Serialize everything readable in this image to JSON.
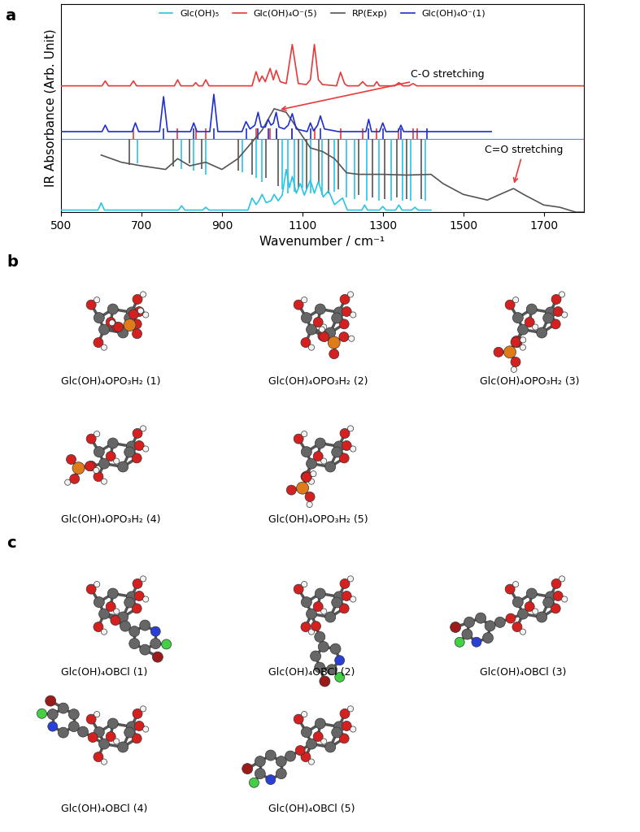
{
  "chart_data": {
    "type": "line",
    "panel_label": "a",
    "x_label": "Wavenumber / cm⁻¹",
    "y_label": "IR Absorbance (Arb. Unit)",
    "xlim": [
      500,
      1800
    ],
    "xticks": [
      500,
      700,
      900,
      1100,
      1300,
      1500,
      1700
    ],
    "ylim": [
      0,
      11
    ],
    "tick_labels": "x",
    "legend": "upper center",
    "stick_base": 3.89,
    "series": [
      {
        "name": "Glc(OH)₅",
        "color": "#29c5e6",
        "x": [
          500,
          592,
          600,
          608,
          792,
          800,
          808,
          852,
          860,
          868,
          965,
          975,
          985,
          992,
          1000,
          1010,
          1022,
          1030,
          1040,
          1050,
          1060,
          1068,
          1075,
          1085,
          1095,
          1105,
          1120,
          1130,
          1140,
          1152,
          1165,
          1180,
          1200,
          1212,
          1248,
          1255,
          1262,
          1292,
          1300,
          1308,
          1332,
          1340,
          1348,
          1372,
          1380,
          1388,
          1420
        ],
        "values": [
          0.11,
          0.11,
          0.49,
          0.11,
          0.11,
          0.34,
          0.11,
          0.11,
          0.26,
          0.11,
          0.11,
          0.75,
          0.4,
          0.6,
          0.94,
          0.5,
          0.6,
          0.94,
          0.6,
          0.9,
          2.26,
          1.3,
          1.89,
          1.0,
          1.51,
          0.9,
          1.7,
          1.0,
          1.62,
          0.8,
          1.13,
          0.4,
          0.75,
          0.11,
          0.11,
          0.38,
          0.11,
          0.11,
          0.3,
          0.11,
          0.11,
          0.38,
          0.11,
          0.11,
          0.26,
          0.11,
          0.11
        ],
        "sticks": {
          "x": [
            690,
            800,
            830,
            860,
            950,
            985,
            1000,
            1050,
            1065,
            1080,
            1100,
            1120,
            1150,
            1180,
            1210,
            1230,
            1260,
            1290,
            1320,
            1350,
            1370,
            1405
          ],
          "tips": [
            2.6,
            2.3,
            2.2,
            2.0,
            2.1,
            1.8,
            1.6,
            1.2,
            1.0,
            1.1,
            1.3,
            1.0,
            0.9,
            1.1,
            0.8,
            0.7,
            0.6,
            0.6,
            0.6,
            0.6,
            0.6,
            0.6
          ]
        }
      },
      {
        "name": "Glc(OH)₄O⁻(5)",
        "color": "#e8393b",
        "x": [
          500,
          602,
          610,
          618,
          672,
          680,
          688,
          782,
          790,
          798,
          828,
          835,
          842,
          852,
          860,
          868,
          975,
          985,
          993,
          1000,
          1008,
          1020,
          1028,
          1035,
          1045,
          1060,
          1075,
          1090,
          1110,
          1120,
          1130,
          1140,
          1150,
          1185,
          1195,
          1205,
          1212,
          1240,
          1250,
          1260,
          1278,
          1285,
          1292,
          1330,
          1340,
          1350,
          1365,
          1375,
          1385,
          1800
        ],
        "values": [
          6.68,
          6.68,
          6.94,
          6.68,
          6.68,
          6.94,
          6.68,
          6.68,
          7.0,
          6.68,
          6.68,
          6.85,
          6.68,
          6.68,
          7.0,
          6.68,
          6.68,
          7.43,
          6.9,
          7.2,
          6.9,
          7.6,
          7.0,
          7.5,
          6.9,
          6.8,
          8.87,
          6.8,
          6.75,
          7.0,
          8.87,
          7.0,
          6.75,
          6.68,
          7.4,
          6.8,
          6.68,
          6.68,
          6.9,
          6.68,
          6.68,
          6.9,
          6.68,
          6.68,
          6.85,
          6.68,
          6.68,
          6.8,
          6.68,
          6.68
        ],
        "sticks": {
          "x": [
            680,
            790,
            835,
            860,
            985,
            1020,
            1035,
            1075,
            1130,
            1195,
            1250,
            1285,
            1340,
            1375,
            1385
          ],
          "tips": [
            4.42,
            4.42,
            4.42,
            4.42,
            4.42,
            4.42,
            4.42,
            4.42,
            4.42,
            4.42,
            4.42,
            4.42,
            4.42,
            4.42,
            4.42
          ]
        }
      },
      {
        "name": "RP(Exp)",
        "color": "#555555",
        "x": [
          600,
          650,
          700,
          760,
          790,
          820,
          860,
          900,
          940,
          970,
          1000,
          1030,
          1060,
          1090,
          1120,
          1150,
          1180,
          1210,
          1240,
          1300,
          1360,
          1420,
          1450,
          1500,
          1560,
          1600,
          1625,
          1650,
          1700,
          1740,
          1780,
          1800
        ],
        "values": [
          3.02,
          2.64,
          2.45,
          2.26,
          2.83,
          2.45,
          2.64,
          2.26,
          2.83,
          3.58,
          4.34,
          5.47,
          5.28,
          4.34,
          3.4,
          3.21,
          2.83,
          2.08,
          2.0,
          2.0,
          1.96,
          2.0,
          1.51,
          0.94,
          0.64,
          1.02,
          1.25,
          0.94,
          0.38,
          0.26,
          0.0,
          0.0
        ],
        "sticks": {
          "x": [
            670,
            780,
            820,
            850,
            940,
            975,
            1010,
            1040,
            1090,
            1110,
            1140,
            1165,
            1190,
            1240,
            1275,
            1305,
            1335,
            1360,
            1395
          ],
          "tips": [
            2.5,
            2.4,
            2.6,
            2.3,
            2.2,
            2.0,
            1.8,
            1.4,
            1.3,
            1.2,
            1.5,
            1.0,
            1.2,
            0.9,
            0.8,
            0.7,
            0.8,
            0.7,
            0.7
          ]
        }
      },
      {
        "name": "Glc(OH)₄O⁻(1)",
        "color": "#1f2fd0",
        "x": [
          500,
          602,
          610,
          618,
          677,
          685,
          693,
          745,
          755,
          765,
          822,
          830,
          838,
          870,
          880,
          890,
          950,
          960,
          970,
          982,
          990,
          998,
          1008,
          1015,
          1022,
          1028,
          1035,
          1042,
          1055,
          1065,
          1075,
          1085,
          1112,
          1120,
          1128,
          1138,
          1145,
          1155,
          1190,
          1258,
          1265,
          1272,
          1292,
          1300,
          1308,
          1338,
          1345,
          1352,
          1570
        ],
        "values": [
          4.26,
          4.26,
          4.6,
          4.26,
          4.26,
          4.72,
          4.26,
          4.26,
          6.11,
          4.26,
          4.26,
          4.72,
          4.26,
          4.26,
          6.23,
          4.26,
          4.26,
          4.79,
          4.4,
          4.6,
          5.28,
          4.5,
          4.5,
          4.91,
          4.6,
          4.7,
          5.28,
          4.5,
          4.4,
          4.6,
          5.21,
          4.4,
          4.26,
          4.72,
          4.3,
          4.6,
          5.09,
          4.4,
          4.26,
          4.26,
          4.91,
          4.26,
          4.26,
          4.72,
          4.26,
          4.26,
          4.6,
          4.26,
          4.26
        ],
        "sticks": {
          "x": [
            755,
            830,
            880,
            960,
            990,
            1015,
            1035,
            1075,
            1120,
            1145,
            1265,
            1300,
            1345,
            1410
          ],
          "tips": [
            4.42,
            4.42,
            4.42,
            4.42,
            4.42,
            4.42,
            4.42,
            4.42,
            4.42,
            4.42,
            4.42,
            4.42,
            4.42,
            4.42
          ]
        }
      }
    ],
    "annotations": [
      {
        "text": "C-O stretching",
        "x": 1040,
        "y": 5.4,
        "text_x": 1460,
        "text_y": 7.3
      },
      {
        "text": "C=O stretching",
        "x": 1625,
        "y": 1.4,
        "text_x": 1650,
        "text_y": 3.3
      }
    ]
  },
  "structures": [
    {
      "panel_label": "b",
      "labels": [
        "Glc(OH)₄OPO₃H₂ (1)",
        "Glc(OH)₄OPO₃H₂ (2)",
        "Glc(OH)₄OPO₃H₂ (3)",
        "Glc(OH)₄OPO₃H₂ (4)",
        "Glc(OH)₄OPO₃H₂ (5)"
      ]
    },
    {
      "panel_label": "c",
      "labels": [
        "Glc(OH)₄OBCl (1)",
        "Glc(OH)₄OBCl (2)",
        "Glc(OH)₄OBCl (3)",
        "Glc(OH)₄OBCl (4)",
        "Glc(OH)₄OBCl (5)"
      ]
    }
  ]
}
